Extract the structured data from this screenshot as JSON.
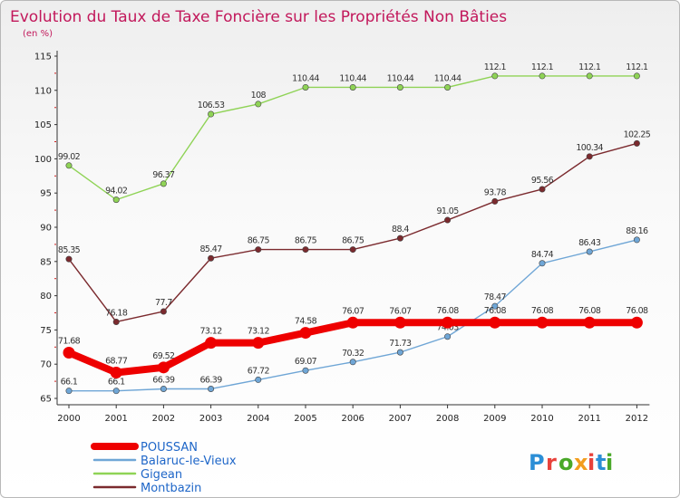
{
  "title": "Evolution du Taux de Taxe Foncière sur les Propriétés Non Bâties",
  "subtitle": "(en %)",
  "brand": {
    "text": "Proxiti",
    "letter_colors": [
      "#2b8ed6",
      "#e8423b",
      "#4aa829",
      "#f29d1f",
      "#e8423b",
      "#2b8ed6",
      "#4aa829"
    ]
  },
  "chart_data": {
    "type": "line",
    "title": "Evolution du Taux de Taxe Foncière sur les Propriétés Non Bâties",
    "subtitle": "(en %)",
    "x": [
      "2000",
      "2001",
      "2002",
      "2003",
      "2004",
      "2005",
      "2006",
      "2007",
      "2008",
      "2009",
      "2010",
      "2011",
      "2012"
    ],
    "ylim": [
      65,
      115
    ],
    "yticks": [
      65,
      70,
      75,
      80,
      85,
      90,
      95,
      100,
      105,
      110,
      115
    ],
    "grid": false,
    "legend": "bottom-left",
    "series": [
      {
        "name": "Gigean",
        "color": "#8fd356",
        "values": [
          99.02,
          94.02,
          96.37,
          106.53,
          108,
          110.44,
          110.44,
          110.44,
          110.44,
          112.1,
          112.1,
          112.1,
          112.1
        ],
        "labels": [
          "99.02",
          "94.02",
          "96.37",
          "106.53",
          "108",
          "110.44",
          "110.44",
          "110.44",
          "110.44",
          "112.1",
          "112.1",
          "112.1",
          "112.1"
        ]
      },
      {
        "name": "Montbazin",
        "color": "#7b2a2e",
        "values": [
          85.35,
          76.18,
          77.7,
          85.47,
          86.75,
          86.75,
          86.75,
          88.4,
          91.05,
          93.78,
          95.56,
          100.34,
          102.25
        ],
        "labels": [
          "85.35",
          "76.18",
          "77.7",
          "85.47",
          "86.75",
          "86.75",
          "86.75",
          "88.4",
          "91.05",
          "93.78",
          "95.56",
          "100.34",
          "102.25"
        ]
      },
      {
        "name": "Balaruc-le-Vieux",
        "color": "#6fa6d6",
        "values": [
          66.1,
          66.1,
          66.39,
          66.39,
          67.72,
          69.07,
          70.32,
          71.73,
          74.03,
          78.47,
          84.74,
          86.43,
          88.16
        ],
        "labels": [
          "66.1",
          "66.1",
          "66.39",
          "66.39",
          "67.72",
          "69.07",
          "70.32",
          "71.73",
          "74.03",
          "78.47",
          "84.74",
          "86.43",
          "88.16"
        ]
      },
      {
        "name": "POUSSAN",
        "color": "#ee0000",
        "values": [
          71.68,
          68.77,
          69.52,
          73.12,
          73.12,
          74.58,
          76.07,
          76.07,
          76.08,
          76.08,
          76.08,
          76.08,
          76.08
        ],
        "labels": [
          "71.68",
          "68.77",
          "69.52",
          "73.12",
          "73.12",
          "74.58",
          "76.07",
          "76.07",
          "76.08",
          "76.08",
          "76.08",
          "76.08",
          "76.08"
        ]
      }
    ],
    "legend_order": [
      "POUSSAN",
      "Balaruc-le-Vieux",
      "Gigean",
      "Montbazin"
    ]
  }
}
